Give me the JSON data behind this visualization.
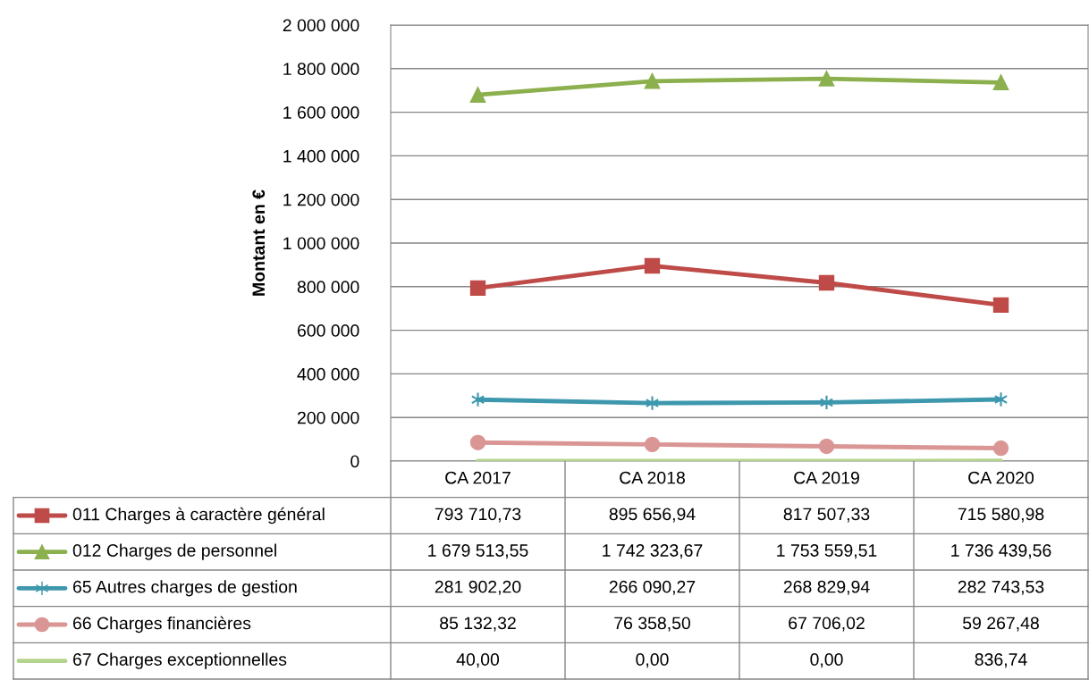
{
  "chart_data": {
    "type": "line",
    "ylabel": "Montant en €",
    "categories": [
      "CA 2017",
      "CA 2018",
      "CA 2019",
      "CA 2020"
    ],
    "ylim": [
      0,
      2000000
    ],
    "yticks": [
      {
        "value": 0,
        "label": "0"
      },
      {
        "value": 200000,
        "label": "200 000"
      },
      {
        "value": 400000,
        "label": "400 000"
      },
      {
        "value": 600000,
        "label": "600 000"
      },
      {
        "value": 800000,
        "label": "800 000"
      },
      {
        "value": 1000000,
        "label": "1 000 000"
      },
      {
        "value": 1200000,
        "label": "1 200 000"
      },
      {
        "value": 1400000,
        "label": "1 400 000"
      },
      {
        "value": 1600000,
        "label": "1 600 000"
      },
      {
        "value": 1800000,
        "label": "1 800 000"
      },
      {
        "value": 2000000,
        "label": "2 000 000"
      }
    ],
    "grid": "y",
    "legend": "bottom",
    "line_style": "solid",
    "series": [
      {
        "name": "011 Charges à caractère général",
        "color": "#be4b48",
        "marker": "square",
        "values": [
          793710.73,
          895656.94,
          817507.33,
          715580.98
        ],
        "value_labels": [
          "793 710,73",
          "895 656,94",
          "817 507,33",
          "715 580,98"
        ]
      },
      {
        "name": "012 Charges de personnel",
        "color": "#8cb04e",
        "marker": "triangle",
        "values": [
          1679513.55,
          1742323.67,
          1753559.51,
          1736439.56
        ],
        "value_labels": [
          "1 679 513,55",
          "1 742 323,67",
          "1 753 559,51",
          "1 736 439,56"
        ]
      },
      {
        "name": "65 Autres charges de gestion",
        "color": "#3d97ad",
        "marker": "cross",
        "values": [
          281902.2,
          266090.27,
          268829.94,
          282743.53
        ],
        "value_labels": [
          "281 902,20",
          "266 090,27",
          "268 829,94",
          "282 743,53"
        ]
      },
      {
        "name": "66 Charges financières",
        "color": "#d99694",
        "marker": "circle",
        "values": [
          85132.32,
          76358.5,
          67706.02,
          59267.48
        ],
        "value_labels": [
          "85 132,32",
          "76 358,50",
          "67 706,02",
          "59 267,48"
        ]
      },
      {
        "name": "67 Charges exceptionnelles",
        "color": "#b3d48c",
        "marker": "none",
        "values": [
          40.0,
          0.0,
          0.0,
          836.74
        ],
        "value_labels": [
          "40,00",
          "0,00",
          "0,00",
          "836,74"
        ]
      }
    ]
  }
}
